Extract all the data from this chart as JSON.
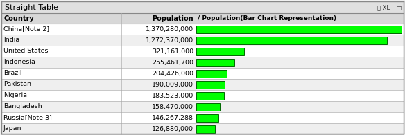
{
  "title": "Straight Table",
  "col_country": "Country",
  "col_population": "Population",
  "col_bar": "Population(Bar Chart Representation)",
  "rows": [
    {
      "country": "China[Note 2]",
      "population": 1370280000
    },
    {
      "country": "India",
      "population": 1272370000
    },
    {
      "country": "United States",
      "population": 321161000
    },
    {
      "country": "Indonesia",
      "population": 255461700
    },
    {
      "country": "Brazil",
      "population": 204426000
    },
    {
      "country": "Pakistan",
      "population": 190009000
    },
    {
      "country": "Nigeria",
      "population": 183523000
    },
    {
      "country": "Bangladesh",
      "population": 158470000
    },
    {
      "country": "Russia[Note 3]",
      "population": 146267288
    },
    {
      "country": "Japan",
      "population": 126880000
    }
  ],
  "bar_color": "#00ff00",
  "bar_border_color": "#006600",
  "header_bg": "#d8d8d8",
  "title_bg": "#e0e0e0",
  "row_bg_odd": "#ffffff",
  "row_bg_even": "#efefef",
  "grid_color": "#b0b0b0",
  "title_border": "#888888",
  "font_color": "#000000",
  "header_font_color": "#000000",
  "outer_border": "#888888",
  "icons_color": "#333333",
  "fig_w": 5.84,
  "fig_h": 1.95,
  "dpi": 100
}
